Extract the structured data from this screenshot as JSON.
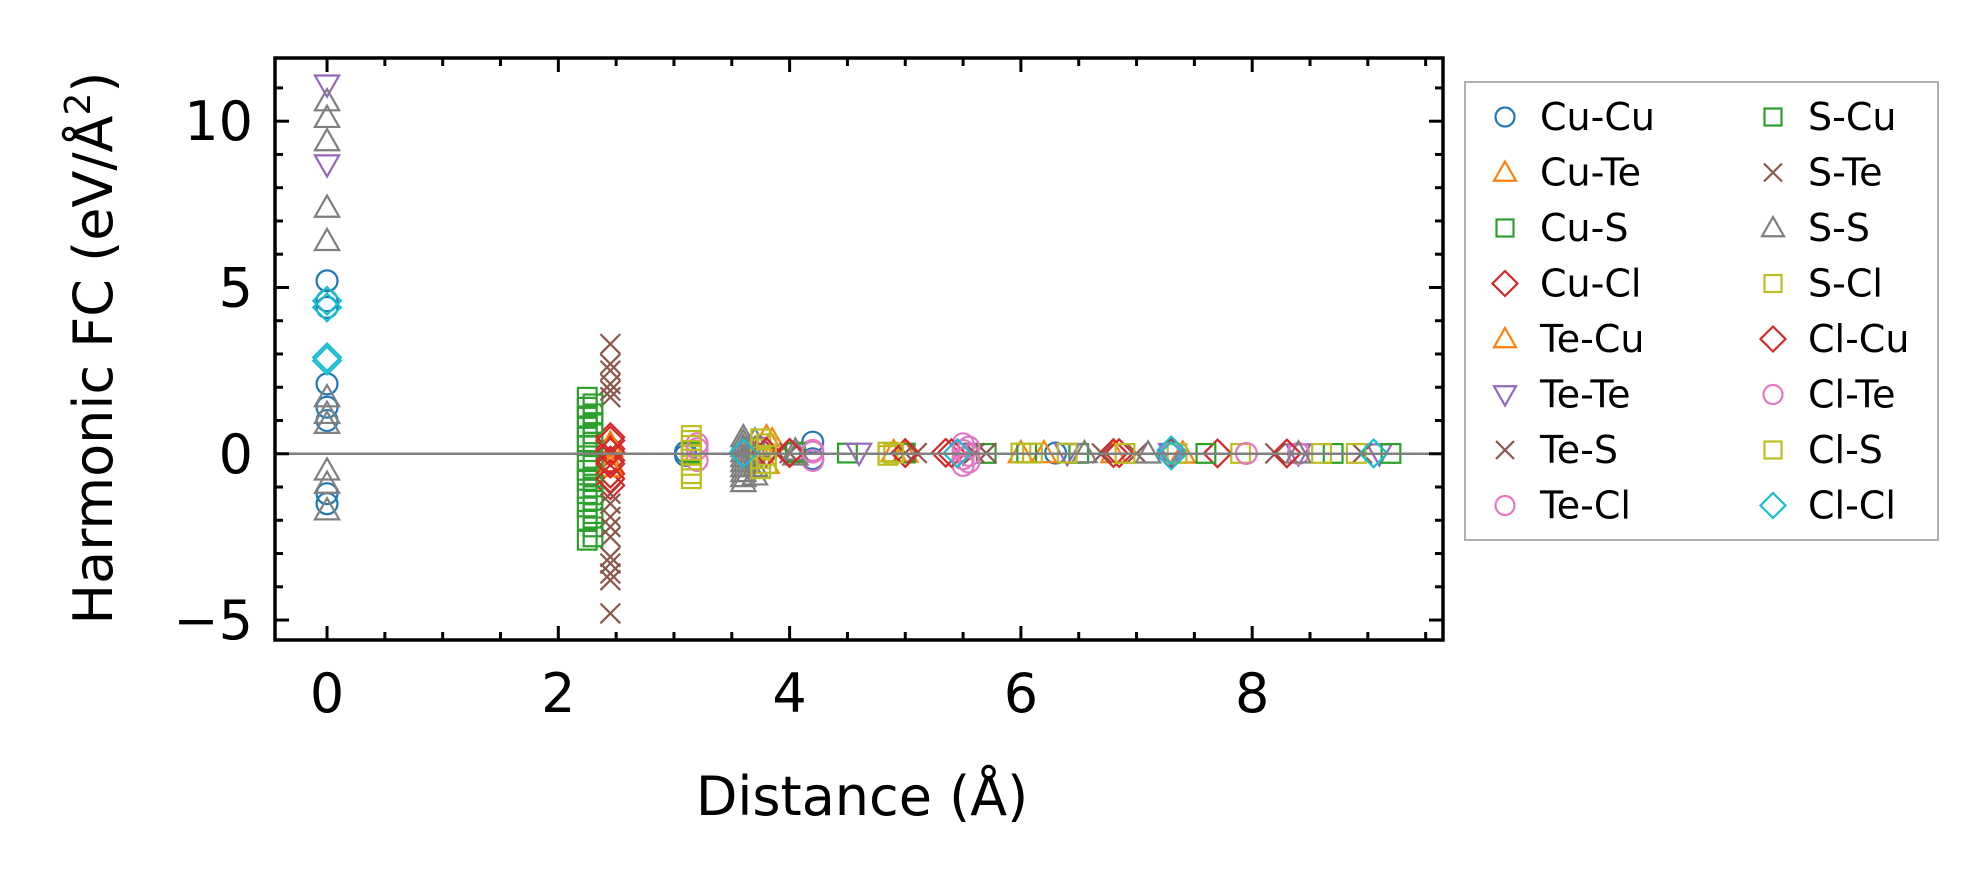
{
  "chart_data": {
    "type": "scatter",
    "xlabel": "Distance (Å)",
    "ylabel_main": "Harmonic FC (eV/Å",
    "ylabel_sup": "2",
    "ylabel_close": ")",
    "xlim": [
      -0.45,
      9.65
    ],
    "ylim": [
      -5.6,
      11.9
    ],
    "xticks": [
      0,
      2,
      4,
      6,
      8
    ],
    "yticks": [
      -5,
      0,
      5,
      10
    ],
    "xtick_labels": [
      "0",
      "2",
      "4",
      "6",
      "8"
    ],
    "ytick_labels": [
      "−5",
      "0",
      "5",
      "10"
    ],
    "zero_line": 0,
    "legend_position": "outside right, upper",
    "series": [
      {
        "name": "Cu-Cu",
        "marker": "circle",
        "color": "#1f77b4",
        "points": [
          [
            0,
            5.2
          ],
          [
            0,
            4.6
          ],
          [
            0,
            4.4
          ],
          [
            0,
            2.1
          ],
          [
            0,
            1.4
          ],
          [
            0,
            1.0
          ],
          [
            0,
            -1.2
          ],
          [
            0,
            -1.5
          ],
          [
            3.1,
            0.05
          ],
          [
            3.1,
            -0.05
          ],
          [
            4.2,
            0.35
          ],
          [
            4.2,
            -0.15
          ],
          [
            6.3,
            0.02
          ],
          [
            7.3,
            0.02
          ]
        ]
      },
      {
        "name": "Cu-Te",
        "marker": "triangle-up",
        "color": "#ff7f0e",
        "points": [
          [
            2.45,
            0.2
          ],
          [
            2.45,
            -0.25
          ],
          [
            3.8,
            0.5
          ],
          [
            3.8,
            -0.3
          ],
          [
            4.9,
            0.05
          ],
          [
            6.0,
            0.02
          ],
          [
            6.8,
            0.02
          ]
        ]
      },
      {
        "name": "Cu-S",
        "marker": "square",
        "color": "#2ca02c",
        "points": [
          [
            2.25,
            1.7
          ],
          [
            2.25,
            1.4
          ],
          [
            2.25,
            1.1
          ],
          [
            2.25,
            0.8
          ],
          [
            2.25,
            0.5
          ],
          [
            2.25,
            0.25
          ],
          [
            2.25,
            -0.2
          ],
          [
            2.25,
            -0.5
          ],
          [
            2.25,
            -0.8
          ],
          [
            2.25,
            -1.2
          ],
          [
            2.25,
            -1.6
          ],
          [
            2.25,
            -2.0
          ],
          [
            2.25,
            -2.6
          ],
          [
            3.15,
            0.02
          ],
          [
            4.05,
            0.03
          ],
          [
            4.5,
            0.02
          ],
          [
            5.7,
            0.01
          ],
          [
            6.5,
            0.01
          ],
          [
            8.7,
            0.01
          ]
        ]
      },
      {
        "name": "Cu-Cl",
        "marker": "diamond",
        "color": "#d62728",
        "points": [
          [
            2.45,
            0.5
          ],
          [
            2.45,
            0.15
          ],
          [
            2.45,
            -0.2
          ],
          [
            2.45,
            -0.6
          ],
          [
            2.45,
            -0.95
          ],
          [
            3.75,
            0.1
          ],
          [
            4.0,
            0.02
          ],
          [
            5.0,
            0.02
          ],
          [
            5.35,
            0.03
          ],
          [
            6.8,
            0.02
          ],
          [
            7.7,
            0.01
          ]
        ]
      },
      {
        "name": "Te-Cu",
        "marker": "triangle-up",
        "color": "#ff7f0e",
        "points": [
          [
            2.45,
            0.3
          ],
          [
            2.45,
            -0.4
          ],
          [
            3.85,
            0.4
          ],
          [
            5.0,
            0.03
          ],
          [
            6.2,
            0.02
          ],
          [
            7.4,
            0.01
          ]
        ]
      },
      {
        "name": "Te-Te",
        "marker": "triangle-down",
        "color": "#9467bd",
        "points": [
          [
            0,
            11.1
          ],
          [
            0,
            8.7
          ],
          [
            3.7,
            0.2
          ],
          [
            4.6,
            0.03
          ],
          [
            5.5,
            0.03
          ],
          [
            6.4,
            0.02
          ],
          [
            7.3,
            0.02
          ],
          [
            8.4,
            0.01
          ],
          [
            9.1,
            0.01
          ]
        ]
      },
      {
        "name": "Te-S",
        "marker": "x",
        "color": "#8c564b",
        "points": [
          [
            2.45,
            3.3
          ],
          [
            2.45,
            2.7
          ],
          [
            2.45,
            2.1
          ],
          [
            2.45,
            1.7
          ],
          [
            2.45,
            -1.2
          ],
          [
            2.45,
            -1.9
          ],
          [
            2.45,
            -2.5
          ],
          [
            2.45,
            -3.1
          ],
          [
            2.45,
            -3.6
          ],
          [
            2.45,
            -4.8
          ],
          [
            4.0,
            0.02
          ],
          [
            5.0,
            0.02
          ],
          [
            5.7,
            0.02
          ],
          [
            7.0,
            0.01
          ],
          [
            8.95,
            0.01
          ]
        ]
      },
      {
        "name": "Te-Cl",
        "marker": "circle",
        "color": "#e377c2",
        "points": [
          [
            3.2,
            0.3
          ],
          [
            3.2,
            -0.2
          ],
          [
            4.2,
            0.1
          ],
          [
            4.2,
            -0.2
          ],
          [
            5.5,
            0.3
          ],
          [
            5.5,
            0.1
          ],
          [
            5.5,
            -0.15
          ],
          [
            5.5,
            -0.35
          ],
          [
            7.3,
            0.02
          ],
          [
            8.4,
            0.01
          ]
        ]
      },
      {
        "name": "S-Cu",
        "marker": "square",
        "color": "#2ca02c",
        "points": [
          [
            2.3,
            1.5
          ],
          [
            2.3,
            1.2
          ],
          [
            2.3,
            0.9
          ],
          [
            2.3,
            0.6
          ],
          [
            2.3,
            0.35
          ],
          [
            2.3,
            -0.35
          ],
          [
            2.3,
            -0.7
          ],
          [
            2.3,
            -1.0
          ],
          [
            2.3,
            -1.4
          ],
          [
            2.3,
            -1.8
          ],
          [
            2.3,
            -2.2
          ],
          [
            2.3,
            -2.5
          ],
          [
            3.15,
            0.05
          ],
          [
            4.05,
            0.05
          ],
          [
            5.0,
            0.02
          ],
          [
            6.05,
            0.02
          ],
          [
            7.6,
            0.01
          ],
          [
            9.2,
            0.01
          ]
        ]
      },
      {
        "name": "S-Te",
        "marker": "x",
        "color": "#8c564b",
        "points": [
          [
            2.45,
            2.5
          ],
          [
            2.45,
            1.9
          ],
          [
            2.45,
            -1.5
          ],
          [
            2.45,
            -2.2
          ],
          [
            2.45,
            -3.3
          ],
          [
            2.45,
            -3.8
          ],
          [
            3.9,
            0.03
          ],
          [
            5.1,
            0.02
          ],
          [
            5.6,
            0.02
          ],
          [
            6.7,
            0.01
          ],
          [
            8.2,
            0.01
          ]
        ]
      },
      {
        "name": "S-S",
        "marker": "triangle-up",
        "color": "#7f7f7f",
        "points": [
          [
            0,
            10.6
          ],
          [
            0,
            10.1
          ],
          [
            0,
            9.4
          ],
          [
            0,
            7.4
          ],
          [
            0,
            6.4
          ],
          [
            0,
            1.7
          ],
          [
            0,
            1.2
          ],
          [
            0,
            0.9
          ],
          [
            0,
            -0.5
          ],
          [
            0,
            -0.9
          ],
          [
            0,
            -1.7
          ],
          [
            3.6,
            0.5
          ],
          [
            3.6,
            0.35
          ],
          [
            3.6,
            0.2
          ],
          [
            3.6,
            0.05
          ],
          [
            3.6,
            -0.1
          ],
          [
            3.6,
            -0.25
          ],
          [
            3.6,
            -0.4
          ],
          [
            3.6,
            -0.55
          ],
          [
            3.6,
            -0.7
          ],
          [
            3.6,
            -0.85
          ],
          [
            3.7,
            0.4
          ],
          [
            3.7,
            0.15
          ],
          [
            3.7,
            -0.15
          ],
          [
            3.7,
            -0.4
          ],
          [
            3.7,
            -0.65
          ],
          [
            4.05,
            0.1
          ],
          [
            4.05,
            -0.05
          ],
          [
            6.55,
            0.02
          ],
          [
            7.1,
            0.01
          ],
          [
            8.4,
            0.01
          ]
        ]
      },
      {
        "name": "S-Cl",
        "marker": "square",
        "color": "#bcbd22",
        "points": [
          [
            3.15,
            0.55
          ],
          [
            3.15,
            0.25
          ],
          [
            3.15,
            -0.05
          ],
          [
            3.15,
            -0.35
          ],
          [
            3.15,
            -0.75
          ],
          [
            3.75,
            0.45
          ],
          [
            3.75,
            0.15
          ],
          [
            3.75,
            -0.15
          ],
          [
            3.75,
            -0.45
          ],
          [
            4.85,
            0.05
          ],
          [
            4.85,
            -0.05
          ],
          [
            6.0,
            0.02
          ],
          [
            6.4,
            0.02
          ],
          [
            7.9,
            0.01
          ],
          [
            8.9,
            0.01
          ]
        ]
      },
      {
        "name": "Cl-Cu",
        "marker": "diamond",
        "color": "#d62728",
        "points": [
          [
            2.45,
            0.4
          ],
          [
            2.45,
            0.05
          ],
          [
            2.45,
            -0.3
          ],
          [
            2.45,
            -0.75
          ],
          [
            3.8,
            0.05
          ],
          [
            4.0,
            0.03
          ],
          [
            5.0,
            0.02
          ],
          [
            5.4,
            0.02
          ],
          [
            6.85,
            0.02
          ],
          [
            7.3,
            0.02
          ],
          [
            8.3,
            0.01
          ]
        ]
      },
      {
        "name": "Cl-Te",
        "marker": "circle",
        "color": "#e377c2",
        "points": [
          [
            3.2,
            0.15
          ],
          [
            4.2,
            0.05
          ],
          [
            5.55,
            0.2
          ],
          [
            5.55,
            -0.05
          ],
          [
            5.55,
            -0.25
          ],
          [
            7.3,
            0.01
          ],
          [
            7.95,
            0.01
          ]
        ]
      },
      {
        "name": "Cl-S",
        "marker": "square",
        "color": "#bcbd22",
        "points": [
          [
            3.15,
            0.4
          ],
          [
            3.15,
            0.1
          ],
          [
            3.15,
            -0.6
          ],
          [
            3.8,
            0.3
          ],
          [
            3.8,
            -0.05
          ],
          [
            3.8,
            -0.3
          ],
          [
            4.9,
            0.02
          ],
          [
            6.1,
            0.02
          ],
          [
            6.9,
            0.01
          ],
          [
            7.35,
            0.01
          ],
          [
            8.6,
            0.01
          ]
        ]
      },
      {
        "name": "Cl-Cl",
        "marker": "diamond",
        "color": "#17becf",
        "points": [
          [
            0,
            4.6
          ],
          [
            0,
            4.4
          ],
          [
            0,
            2.9
          ],
          [
            0,
            2.8
          ],
          [
            3.6,
            0.02
          ],
          [
            5.45,
            0.02
          ],
          [
            7.3,
            0.1
          ],
          [
            7.3,
            -0.05
          ],
          [
            9.05,
            0.01
          ]
        ]
      }
    ]
  }
}
